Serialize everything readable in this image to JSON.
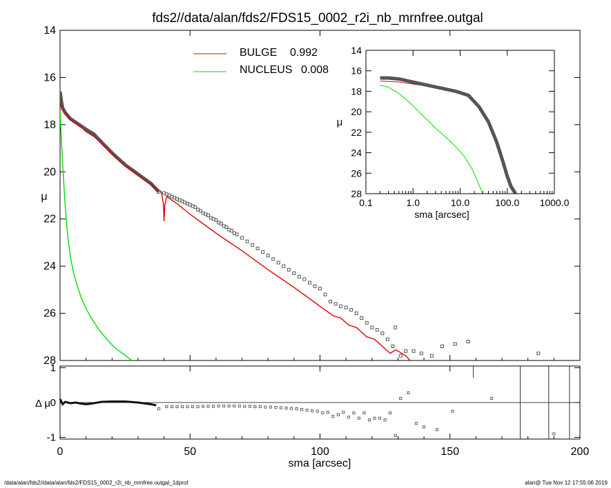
{
  "title": "fds2//data/alan/fds2/FDS15_0002_r2i_nb_mrnfree.outgal",
  "footer_left": "/data/alan/fds2//data/alan/fds2/FDS15_0002_r2i_nb_mrnfree.outgal_1dprof",
  "footer_right": "alan@  Tue Nov 12 17:55:06 2019",
  "colors": {
    "bulge": "#e00000",
    "nucleus": "#00dd00",
    "data": "#555555"
  },
  "legend": [
    {
      "name": "BULGE",
      "value": "0.992",
      "color": "#e00000"
    },
    {
      "name": "NUCLEUS",
      "value": "0.008",
      "color": "#00dd00"
    }
  ],
  "chart_data": [
    {
      "id": "main",
      "type": "line",
      "xlabel": "sma [arcsec]",
      "ylabel": "μ",
      "xlim": [
        0,
        200
      ],
      "ylim": [
        28,
        14
      ],
      "xticks": [
        "0",
        "50",
        "100",
        "150",
        "200"
      ],
      "yticks": [
        "14",
        "16",
        "18",
        "20",
        "22",
        "24",
        "26",
        "28"
      ],
      "series": [
        {
          "name": "BULGE",
          "kind": "line",
          "color": "#e00000",
          "x": [
            0,
            1,
            2,
            4,
            6,
            8,
            10,
            13,
            16,
            20,
            25,
            30,
            35,
            39,
            39.8,
            40,
            40.3,
            41,
            45,
            50,
            60,
            70,
            80,
            90,
            95,
            100,
            105,
            108,
            111,
            114,
            118,
            121,
            124,
            127,
            129,
            130,
            133,
            135
          ],
          "y": [
            17.1,
            17.3,
            17.5,
            17.8,
            17.95,
            18.1,
            18.3,
            18.5,
            18.8,
            19.25,
            19.75,
            20.15,
            20.55,
            20.85,
            21.4,
            22.1,
            21.4,
            21.05,
            21.35,
            21.8,
            22.6,
            23.35,
            24.15,
            24.9,
            25.3,
            25.7,
            26.1,
            26.2,
            26.5,
            26.6,
            27.0,
            27.1,
            27.4,
            27.7,
            27.55,
            27.6,
            27.8,
            28.05
          ]
        },
        {
          "name": "NUCLEUS",
          "kind": "line",
          "color": "#00dd00",
          "x": [
            0,
            0.5,
            1,
            1.5,
            2,
            3,
            4,
            5,
            6,
            8,
            10,
            12,
            15,
            18,
            21,
            24,
            27,
            28.5
          ],
          "y": [
            17.5,
            18.6,
            19.7,
            20.6,
            21.5,
            22.8,
            23.6,
            24.2,
            24.6,
            25.3,
            25.8,
            26.2,
            26.7,
            27.1,
            27.45,
            27.7,
            27.95,
            28.05
          ]
        },
        {
          "name": "data",
          "kind": "scatter",
          "x": [
            38,
            40,
            41,
            42,
            43,
            44,
            45,
            46,
            47,
            48,
            49,
            50,
            51,
            52,
            53,
            54,
            55,
            56,
            57,
            58,
            59,
            60,
            61,
            62,
            63,
            64,
            65,
            66,
            67,
            68,
            70,
            72,
            74,
            76,
            78,
            80,
            82,
            84,
            86,
            88,
            90,
            92,
            94,
            96,
            98,
            100,
            102,
            104,
            106,
            108,
            110,
            112,
            114,
            116,
            118,
            120,
            122,
            124,
            126,
            128,
            129,
            131,
            133,
            136,
            139,
            143,
            147,
            152,
            157,
            184
          ],
          "y": [
            20.85,
            20.9,
            20.95,
            21.0,
            21.05,
            21.1,
            21.15,
            21.2,
            21.25,
            21.3,
            21.35,
            21.4,
            21.45,
            21.5,
            21.6,
            21.65,
            21.75,
            21.8,
            21.85,
            21.95,
            22.0,
            22.05,
            22.15,
            22.2,
            22.3,
            22.35,
            22.45,
            22.5,
            22.6,
            22.65,
            22.8,
            22.95,
            23.1,
            23.25,
            23.4,
            23.55,
            23.7,
            23.85,
            24.0,
            24.15,
            24.3,
            24.45,
            24.55,
            24.7,
            24.85,
            24.95,
            25.2,
            25.5,
            25.6,
            25.7,
            25.75,
            25.85,
            26.0,
            26.2,
            26.4,
            26.6,
            26.7,
            26.85,
            27.1,
            27.4,
            26.6,
            27.8,
            27.6,
            27.6,
            27.7,
            27.8,
            27.4,
            27.3,
            27.2,
            27.7
          ]
        }
      ]
    },
    {
      "id": "residual",
      "type": "scatter",
      "xlabel": "sma [arcsec]",
      "ylabel": "Δ μ",
      "xlim": [
        0,
        200
      ],
      "ylim": [
        -1.05,
        1.05
      ],
      "xticks": [
        "0",
        "50",
        "100",
        "150",
        "200"
      ],
      "yticks": [
        "1",
        "0",
        "-1"
      ],
      "x": [
        38,
        41,
        43,
        45,
        47,
        49,
        51,
        53,
        55,
        57,
        59,
        61,
        63,
        65,
        67,
        69,
        71,
        73,
        75,
        77,
        79,
        81,
        83,
        85,
        87,
        89,
        91,
        93,
        95,
        97,
        99,
        101,
        103,
        105,
        107,
        109,
        111,
        113,
        115,
        117,
        119,
        121,
        123,
        125,
        127,
        129,
        131,
        134,
        137,
        140,
        145,
        151,
        166,
        190
      ],
      "y": [
        -0.18,
        -0.12,
        -0.12,
        -0.12,
        -0.12,
        -0.12,
        -0.12,
        -0.12,
        -0.11,
        -0.11,
        -0.11,
        -0.1,
        -0.1,
        -0.1,
        -0.1,
        -0.1,
        -0.11,
        -0.11,
        -0.12,
        -0.12,
        -0.13,
        -0.13,
        -0.14,
        -0.15,
        -0.16,
        -0.17,
        -0.18,
        -0.2,
        -0.22,
        -0.24,
        -0.25,
        -0.3,
        -0.28,
        -0.4,
        -0.35,
        -0.28,
        -0.42,
        -0.3,
        -0.45,
        -0.3,
        -0.5,
        -0.45,
        -0.45,
        -0.5,
        -0.3,
        -0.95,
        0.12,
        0.28,
        -0.6,
        -0.7,
        -0.78,
        -0.25,
        0.12,
        -0.9
      ],
      "vlines_x": [
        159,
        177,
        188,
        196
      ]
    },
    {
      "id": "inset",
      "type": "line",
      "xlabel": "sma [arcsec]",
      "ylabel": "μ",
      "xscale": "log",
      "xlim": [
        0.1,
        1000
      ],
      "ylim": [
        28,
        14
      ],
      "xticks": [
        "0.1",
        "1.0",
        "10.0",
        "100.0",
        "1000.0"
      ],
      "yticks": [
        "14",
        "16",
        "18",
        "20",
        "22",
        "24",
        "26",
        "28"
      ],
      "series": [
        {
          "name": "BULGE",
          "kind": "line",
          "color": "#e00000",
          "x": [
            0.2,
            0.5,
            1,
            2,
            4,
            8,
            15,
            25,
            40,
            60,
            100,
            140
          ],
          "y": [
            17.0,
            17.1,
            17.3,
            17.5,
            17.7,
            18.0,
            18.5,
            19.5,
            21.0,
            23.0,
            26.0,
            28.0
          ]
        },
        {
          "name": "NUCLEUS",
          "kind": "line",
          "color": "#00dd00",
          "x": [
            0.2,
            0.3,
            0.5,
            0.8,
            1.2,
            2,
            3,
            5,
            8,
            12,
            18,
            25,
            30
          ],
          "y": [
            17.4,
            17.6,
            18.2,
            19.0,
            19.8,
            20.8,
            21.6,
            22.5,
            23.4,
            24.3,
            25.6,
            27.1,
            28.0
          ]
        },
        {
          "name": "data",
          "kind": "line",
          "color": "#555555",
          "x": [
            0.2,
            0.3,
            0.5,
            1,
            2,
            4,
            8,
            15,
            25,
            40,
            60,
            80,
            100,
            120,
            150
          ],
          "y": [
            16.7,
            16.7,
            16.8,
            17.1,
            17.4,
            17.7,
            18.0,
            18.4,
            19.5,
            21.0,
            23.0,
            24.8,
            26.3,
            27.3,
            28.0
          ]
        }
      ]
    }
  ]
}
